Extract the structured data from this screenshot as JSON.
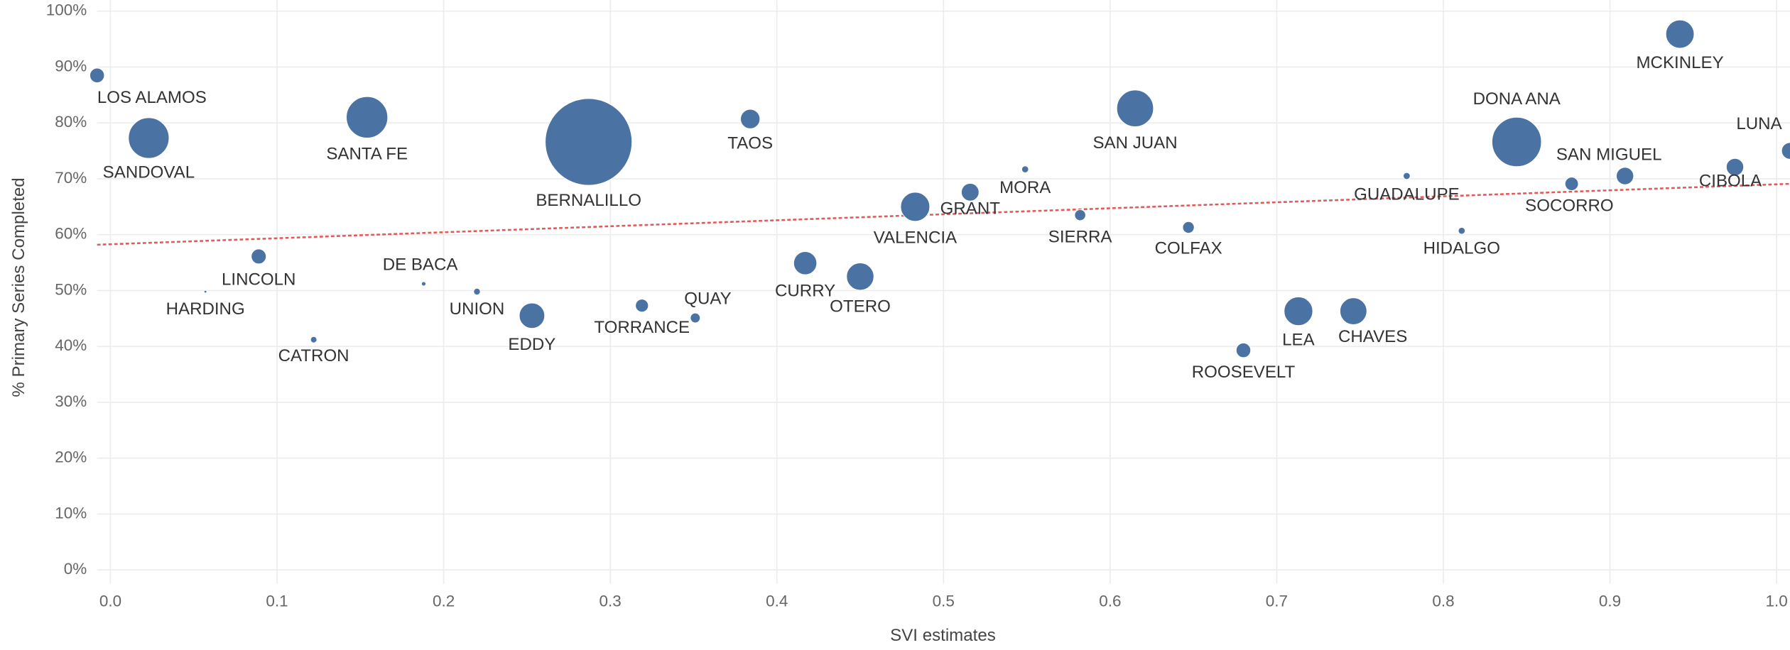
{
  "chart_data": {
    "type": "scatter",
    "x_label": "SVI estimates",
    "y_label": "% Primary Series Completed",
    "color": "#4a72a3",
    "grid": true,
    "xlim": [
      -0.008,
      1.008
    ],
    "ylim": [
      -2.5,
      102
    ],
    "xticks": [
      {
        "value": 0,
        "label": "0.0"
      },
      0.1,
      0.2,
      0.3,
      0.4,
      0.5,
      0.6,
      0.7,
      0.8,
      0.9,
      {
        "value": 1,
        "label": "1.0"
      }
    ],
    "yticks": [
      {
        "value": 0,
        "label": "0%"
      },
      {
        "value": 10,
        "label": "10%"
      },
      {
        "value": 20,
        "label": "20%"
      },
      {
        "value": 30,
        "label": "30%"
      },
      {
        "value": 40,
        "label": "40%"
      },
      {
        "value": 50,
        "label": "50%"
      },
      {
        "value": 60,
        "label": "60%"
      },
      {
        "value": 70,
        "label": "70%"
      },
      {
        "value": 80,
        "label": "80%"
      },
      {
        "value": 90,
        "label": "90%"
      },
      {
        "value": 100,
        "label": "100%"
      }
    ],
    "labels": [
      "LOS ALAMOS",
      "SANDOVAL",
      "SANTA FE",
      "BERNALILLO",
      "TAOS",
      "SAN JUAN",
      "MCKINLEY",
      "DONA ANA",
      "LUNA",
      "CIBOLA",
      "SAN MIGUEL",
      "SOCORRO",
      "GUADALUPE",
      "HIDALGO",
      "COLFAX",
      "SIERRA",
      "MORA",
      "GRANT",
      "VALENCIA",
      "OTERO",
      "CURRY",
      "QUAY",
      "TORRANCE",
      "EDDY",
      "UNION",
      "DE BACA",
      "HARDING",
      "LINCOLN",
      "CATRON",
      "ROOSEVELT",
      "LEA",
      "CHAVES"
    ],
    "x": [
      -0.008,
      0.023,
      0.154,
      0.287,
      0.384,
      0.615,
      0.942,
      0.844,
      1.008,
      0.975,
      0.909,
      0.877,
      0.778,
      0.811,
      0.647,
      0.582,
      0.549,
      0.516,
      0.483,
      0.45,
      0.417,
      0.351,
      0.319,
      0.253,
      0.22,
      0.188,
      0.057,
      0.089,
      0.122,
      0.68,
      0.713,
      0.746
    ],
    "values": [
      88.5,
      77.3,
      81,
      76.6,
      80.7,
      82.6,
      95.9,
      76.6,
      75,
      72.1,
      70.5,
      69.1,
      70.5,
      60.7,
      61.3,
      63.5,
      71.7,
      67.6,
      65,
      52.5,
      54.9,
      45.1,
      47.3,
      45.5,
      49.8,
      51.2,
      49.8,
      56.1,
      41.2,
      39.3,
      46.3,
      46.3
    ],
    "sizes": [
      19000,
      148000,
      154000,
      676000,
      34000,
      121000,
      72000,
      219000,
      25000,
      27000,
      27000,
      16000,
      4300,
      4200,
      12000,
      11000,
      4200,
      28000,
      76000,
      67000,
      48000,
      8700,
      15000,
      58000,
      4000,
      1700,
      650,
      20000,
      3600,
      19000,
      74000,
      65000
    ],
    "trendline": {
      "x": [
        -0.008,
        1.008
      ],
      "values": [
        58.2,
        69.1
      ],
      "color": "#e05a5a"
    }
  }
}
